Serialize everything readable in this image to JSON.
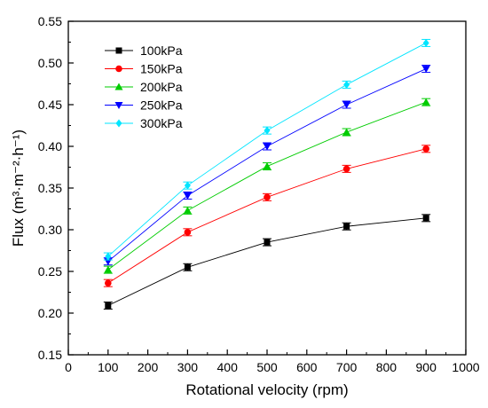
{
  "chart_data": {
    "type": "line",
    "xlabel": "Rotational velocity (rpm)",
    "ylabel": "Flux (m³·m⁻²·h⁻¹)",
    "xlim": [
      0,
      1000
    ],
    "ylim": [
      0.15,
      0.55
    ],
    "x_ticks": [
      "0",
      "100",
      "200",
      "300",
      "400",
      "500",
      "600",
      "700",
      "800",
      "900",
      "1000"
    ],
    "y_ticks": [
      "0.15",
      "0.20",
      "0.25",
      "0.30",
      "0.35",
      "0.40",
      "0.45",
      "0.50",
      "0.55"
    ],
    "x": [
      100,
      300,
      500,
      700,
      900
    ],
    "grid": false,
    "legend_position": "top-left",
    "series": [
      {
        "name": "100kPa",
        "values": [
          0.209,
          0.255,
          0.285,
          0.304,
          0.314
        ],
        "color": "#000000",
        "marker": "square"
      },
      {
        "name": "150kPa",
        "values": [
          0.236,
          0.297,
          0.339,
          0.373,
          0.397
        ],
        "color": "#ff0000",
        "marker": "circle"
      },
      {
        "name": "200kPa",
        "values": [
          0.252,
          0.323,
          0.376,
          0.417,
          0.453
        ],
        "color": "#00cc00",
        "marker": "triangle-up"
      },
      {
        "name": "250kPa",
        "values": [
          0.262,
          0.341,
          0.4,
          0.45,
          0.493
        ],
        "color": "#0000ff",
        "marker": "triangle-down"
      },
      {
        "name": "300kPa",
        "values": [
          0.268,
          0.353,
          0.419,
          0.474,
          0.524
        ],
        "color": "#00e5ff",
        "marker": "diamond"
      }
    ]
  }
}
